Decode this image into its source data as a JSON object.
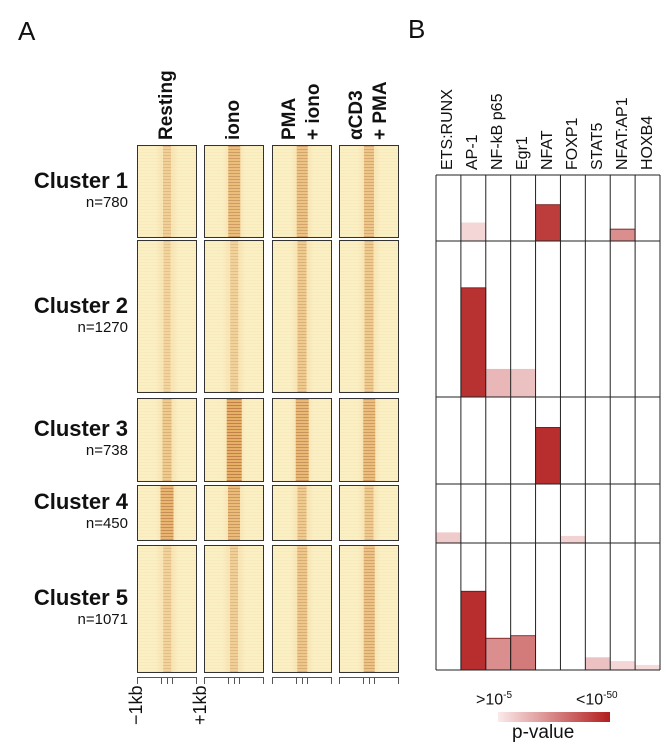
{
  "panelA": {
    "letter": "A",
    "conditions": [
      "Resting",
      "iono",
      "PMA\n+ iono",
      "αCD3\n+ PMA"
    ],
    "condition_line1": [
      "Resting",
      "iono",
      "PMA",
      "αCD3"
    ],
    "condition_line2": [
      "",
      "",
      "+ iono",
      "+ PMA"
    ],
    "clusters": [
      {
        "name": "Cluster 1",
        "n": "n=780"
      },
      {
        "name": "Cluster 2",
        "n": "n=1270"
      },
      {
        "name": "Cluster 3",
        "n": "n=738"
      },
      {
        "name": "Cluster 4",
        "n": "n=450"
      },
      {
        "name": "Cluster 5",
        "n": "n=1071"
      }
    ],
    "heat_intensity": [
      [
        0.2,
        0.55,
        0.45,
        0.4
      ],
      [
        0.1,
        0.15,
        0.3,
        0.3
      ],
      [
        0.3,
        0.85,
        0.65,
        0.55
      ],
      [
        0.7,
        0.6,
        0.3,
        0.3
      ],
      [
        0.15,
        0.2,
        0.35,
        0.45
      ]
    ],
    "axis_left": "−1kb",
    "axis_right": "+1kb",
    "colors": {
      "background": "#fbefc4",
      "signal": "#d2740f",
      "strong": "#a0450a"
    }
  },
  "panelB": {
    "letter": "B",
    "motifs": [
      "ETS:RUNX",
      "AP-1",
      "NF-kB p65",
      "Egr1",
      "NFAT",
      "FOXP1",
      "STAT5",
      "NFAT:AP1",
      "HOXB4"
    ],
    "matrix": [
      [
        0.0,
        0.1,
        0.0,
        0.0,
        0.85,
        0.0,
        0.0,
        0.45,
        0.0
      ],
      [
        0.0,
        0.9,
        0.25,
        0.2,
        0.0,
        0.0,
        0.0,
        0.0,
        0.0
      ],
      [
        0.0,
        0.0,
        0.0,
        0.0,
        0.92,
        0.0,
        0.0,
        0.0,
        0.0
      ],
      [
        0.15,
        0.0,
        0.0,
        0.0,
        0.0,
        0.12,
        0.0,
        0.0,
        0.0
      ],
      [
        0.0,
        0.92,
        0.45,
        0.55,
        0.0,
        0.0,
        0.2,
        0.1,
        0.08
      ]
    ],
    "bar_fraction": [
      [
        0,
        0.28,
        0,
        0,
        0.55,
        0,
        0,
        0.18,
        0
      ],
      [
        0,
        0.7,
        0.18,
        0.18,
        0,
        0,
        0,
        0,
        0
      ],
      [
        0,
        0,
        0,
        0,
        0.65,
        0,
        0,
        0,
        0
      ],
      [
        0.18,
        0,
        0,
        0,
        0,
        0.12,
        0,
        0,
        0
      ],
      [
        0,
        0.62,
        0.25,
        0.27,
        0,
        0,
        0.1,
        0.07,
        0.04
      ]
    ],
    "legend": {
      "low_label": ">10",
      "low_exp": "-5",
      "high_label": "<10",
      "high_exp": "-50",
      "title": "p-value",
      "color_low": "#fbeaea",
      "color_high": "#b21e1e"
    }
  }
}
